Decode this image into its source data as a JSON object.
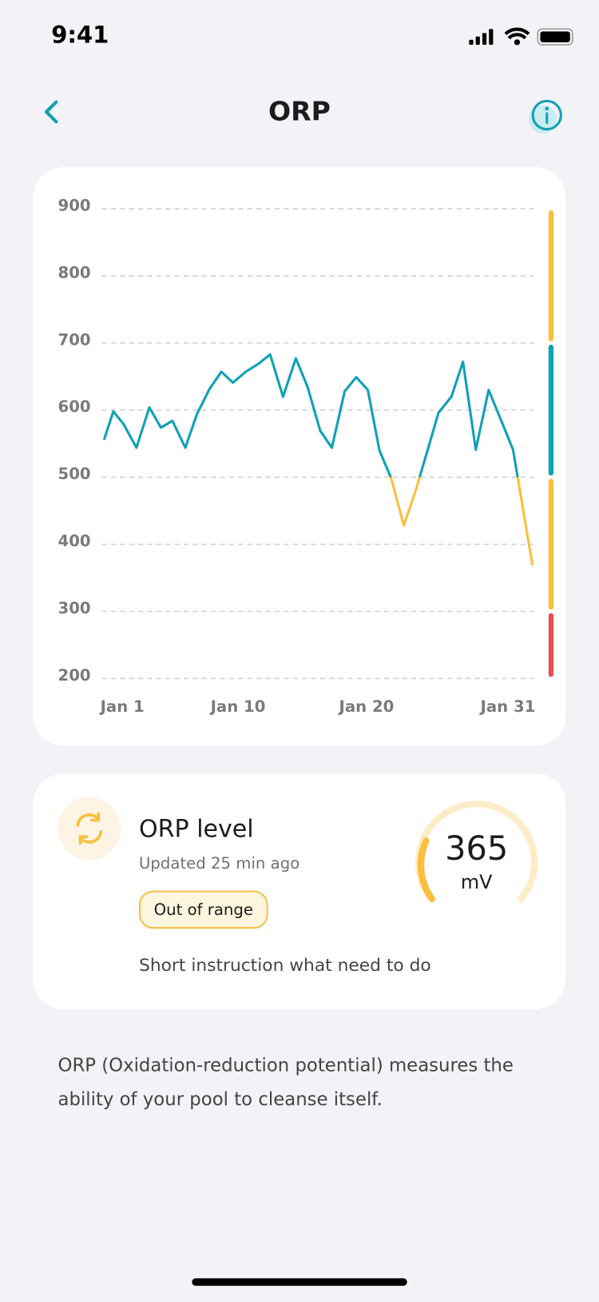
{
  "status_bar": {
    "time": "9:41"
  },
  "header": {
    "title": "ORP"
  },
  "chart_data": {
    "type": "line",
    "x": [
      -0.4,
      0.3,
      1.1,
      2.1,
      3.1,
      4.0,
      4.9,
      5.9,
      6.8,
      7.8,
      8.7,
      9.6,
      10.6,
      11.6,
      12.5,
      13.5,
      14.5,
      15.4,
      16.4,
      17.3,
      18.3,
      19.2,
      20.1,
      21.0,
      21.9,
      22.9,
      23.8,
      24.7,
      25.6,
      26.6,
      27.5,
      28.5,
      29.5,
      30.4,
      31.4,
      32.9
    ],
    "values": [
      557,
      598,
      579,
      544,
      604,
      574,
      584,
      544,
      594,
      632,
      657,
      641,
      657,
      669,
      683,
      620,
      677,
      635,
      569,
      544,
      628,
      649,
      630,
      540,
      499,
      428,
      479,
      537,
      596,
      620,
      672,
      541,
      630,
      588,
      541,
      370
    ],
    "xlim": [
      -0.6,
      33
    ],
    "xticks": [
      {
        "value": 1,
        "label": "Jan 1"
      },
      {
        "value": 10,
        "label": "Jan 10"
      },
      {
        "value": 20,
        "label": "Jan 20"
      },
      {
        "value": 31,
        "label": "Jan 31"
      }
    ],
    "ylim": [
      200,
      900
    ],
    "yticks": [
      200,
      300,
      400,
      500,
      600,
      700,
      800,
      900
    ],
    "grid": true,
    "ranges": [
      {
        "from": 700,
        "to": 900,
        "color": "#fbbf3c"
      },
      {
        "from": 500,
        "to": 700,
        "color": "#12a0b5"
      },
      {
        "from": 300,
        "to": 500,
        "color": "#fbbf3c"
      },
      {
        "from": 200,
        "to": 300,
        "color": "#ea4d4d"
      }
    ]
  },
  "level_card": {
    "title": "ORP level",
    "updated": "Updated 25 min ago",
    "status": "Out of range",
    "value": 365,
    "unit": "mV",
    "instruction": "Short instruction what need to do"
  },
  "description": "ORP (Oxidation-reduction potential) measures the ability of your pool to cleanse itself."
}
